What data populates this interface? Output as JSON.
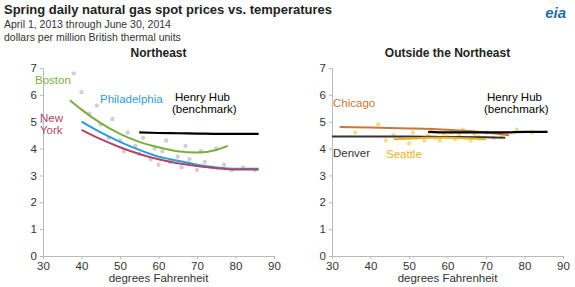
{
  "header": {
    "title": "Spring daily natural gas spot prices vs. temperatures",
    "subtitle": "April 1, 2013 through June 30, 2014",
    "units": "dollars per million British thermal units",
    "logo": "eia"
  },
  "chart_data": [
    {
      "type": "line",
      "title": "Northeast",
      "x_label": "degrees Fahrenheit",
      "xlim": [
        30,
        90
      ],
      "xticks": [
        30,
        40,
        50,
        60,
        70,
        80,
        90
      ],
      "ylim": [
        0,
        7
      ],
      "yticks": [
        0,
        1,
        2,
        3,
        4,
        5,
        6,
        7
      ],
      "grid": false,
      "points": {
        "color": "#cdbfcb",
        "x": [
          38,
          40,
          42,
          44,
          45,
          47,
          48,
          50,
          51,
          52,
          54,
          55,
          56,
          58,
          59,
          60,
          61,
          62,
          63,
          65,
          66,
          67,
          68,
          70,
          71,
          72,
          74,
          75,
          77,
          79,
          82,
          85
        ],
        "y": [
          6.8,
          6.1,
          5.3,
          5.6,
          4.9,
          4.4,
          5.1,
          4.3,
          3.9,
          4.6,
          4.1,
          3.8,
          4.4,
          3.6,
          4.0,
          3.4,
          3.9,
          4.3,
          3.5,
          3.7,
          3.3,
          4.1,
          3.6,
          3.2,
          3.9,
          3.5,
          3.3,
          4.0,
          3.4,
          3.2,
          3.3,
          3.2
        ]
      },
      "series": [
        {
          "name": "Boston",
          "color": "#7cae3f",
          "x": [
            37,
            40,
            45,
            50,
            55,
            60,
            65,
            70,
            75,
            78
          ],
          "values": [
            5.8,
            5.45,
            4.95,
            4.55,
            4.25,
            4.05,
            3.9,
            3.85,
            3.95,
            4.1
          ]
        },
        {
          "name": "Philadelphia",
          "color": "#2f9bd5",
          "x": [
            40,
            45,
            50,
            55,
            60,
            65,
            70,
            75,
            80,
            86
          ],
          "values": [
            5.0,
            4.6,
            4.25,
            3.95,
            3.7,
            3.55,
            3.4,
            3.3,
            3.25,
            3.25
          ]
        },
        {
          "name": "New York",
          "color": "#b0456c",
          "x": [
            40,
            45,
            50,
            55,
            60,
            65,
            70,
            75,
            80,
            86
          ],
          "values": [
            4.7,
            4.35,
            4.05,
            3.8,
            3.6,
            3.45,
            3.35,
            3.27,
            3.22,
            3.22
          ]
        },
        {
          "name": "Henry Hub (benchmark)",
          "color": "#000000",
          "x": [
            55,
            60,
            65,
            70,
            75,
            80,
            86
          ],
          "values": [
            4.6,
            4.58,
            4.57,
            4.56,
            4.55,
            4.55,
            4.55
          ]
        }
      ]
    },
    {
      "type": "line",
      "title": "Outside the Northeast",
      "x_label": "degrees Fahrenheit",
      "xlim": [
        30,
        90
      ],
      "xticks": [
        30,
        40,
        50,
        60,
        70,
        80,
        90
      ],
      "ylim": [
        0,
        7
      ],
      "yticks": [
        0,
        1,
        2,
        3,
        4,
        5,
        6,
        7
      ],
      "grid": false,
      "points": {
        "color": "#f3d57e",
        "x": [
          44,
          46,
          48,
          50,
          51,
          52,
          54,
          55,
          56,
          57,
          58,
          59,
          60,
          61,
          62,
          63,
          64,
          65,
          66,
          67,
          68,
          70,
          72,
          74,
          36,
          42,
          78,
          82
        ],
        "y": [
          4.3,
          4.5,
          4.4,
          4.2,
          4.6,
          4.4,
          4.3,
          4.5,
          4.7,
          4.4,
          4.3,
          4.55,
          4.45,
          4.6,
          4.35,
          4.5,
          4.7,
          4.4,
          4.3,
          4.55,
          4.45,
          4.6,
          4.4,
          4.5,
          4.6,
          4.9,
          4.7,
          4.6
        ]
      },
      "series": [
        {
          "name": "Chicago",
          "color": "#c5793a",
          "x": [
            32,
            40,
            50,
            60,
            70,
            76
          ],
          "values": [
            4.8,
            4.78,
            4.75,
            4.7,
            4.6,
            4.5
          ]
        },
        {
          "name": "Denver",
          "color": "#333333",
          "x": [
            30,
            40,
            50,
            60,
            70,
            75
          ],
          "values": [
            4.45,
            4.45,
            4.45,
            4.43,
            4.42,
            4.4
          ]
        },
        {
          "name": "Seattle",
          "color": "#e6b422",
          "x": [
            46,
            50,
            55,
            60,
            65,
            70
          ],
          "values": [
            4.35,
            4.37,
            4.4,
            4.4,
            4.38,
            4.35
          ]
        },
        {
          "name": "Henry Hub (benchmark)",
          "color": "#000000",
          "x": [
            55,
            60,
            65,
            70,
            75,
            80,
            86
          ],
          "values": [
            4.62,
            4.6,
            4.6,
            4.6,
            4.6,
            4.62,
            4.62
          ]
        }
      ]
    }
  ]
}
